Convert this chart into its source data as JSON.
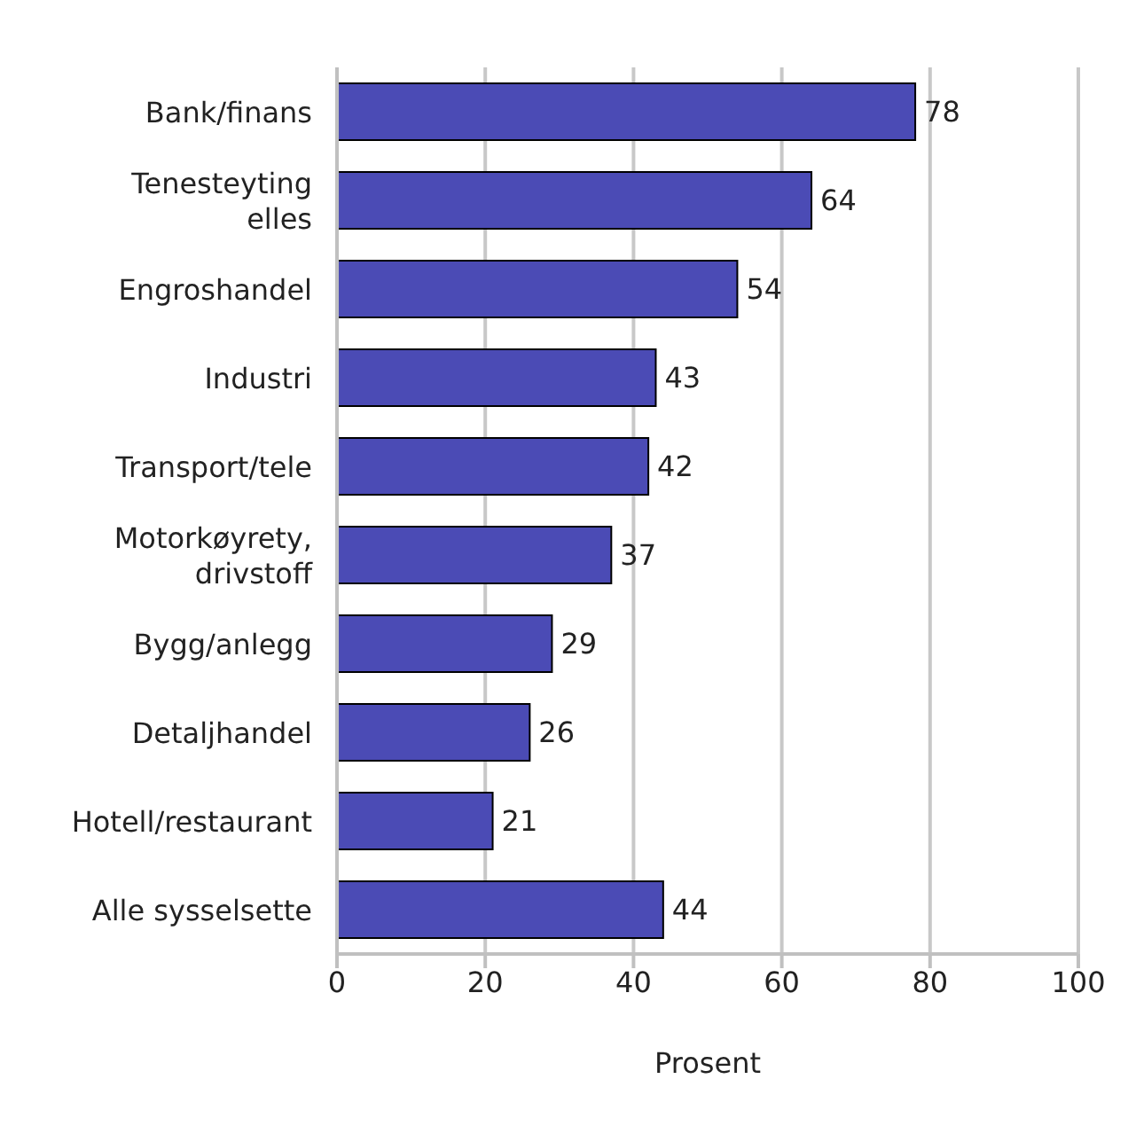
{
  "chart_data": {
    "type": "bar",
    "orientation": "horizontal",
    "xlabel": "Prosent",
    "categories": [
      "Bank/finans",
      "Tenesteyting elles",
      "Engroshandel",
      "Industri",
      "Transport/tele",
      "Motorkøyrety, drivstoff",
      "Bygg/anlegg",
      "Detaljhandel",
      "Hotell/restaurant",
      "Alle sysselsette"
    ],
    "values": [
      78,
      64,
      54,
      43,
      42,
      37,
      29,
      26,
      21,
      44
    ],
    "color": "#4b4bb5",
    "xlim": [
      0,
      100
    ],
    "xticks": [
      0,
      20,
      40,
      60,
      80,
      100
    ],
    "grid": "x",
    "data_labels": true
  }
}
